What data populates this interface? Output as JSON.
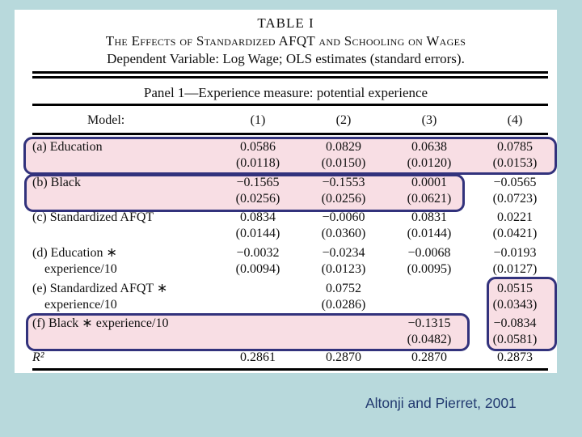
{
  "slide": {
    "background_color": "#b8d9dc",
    "caption": "Altonji and Pierret, 2001",
    "caption_color": "#223a70"
  },
  "table": {
    "title": "TABLE I",
    "subtitle": "The Effects of Standardized AFQT and Schooling on Wages",
    "dependent_line": "Dependent Variable: Log Wage; OLS estimates (standard errors).",
    "panel_header": "Panel 1—Experience measure: potential experience",
    "model_label": "Model:",
    "columns": [
      "(1)",
      "(2)",
      "(3)",
      "(4)"
    ],
    "rows": [
      {
        "label": "(a) Education",
        "label2": "",
        "cells": [
          [
            "0.0586",
            "(0.0118)"
          ],
          [
            "0.0829",
            "(0.0150)"
          ],
          [
            "0.0638",
            "(0.0120)"
          ],
          [
            "0.0785",
            "(0.0153)"
          ]
        ]
      },
      {
        "label": "(b) Black",
        "label2": "",
        "cells": [
          [
            "−0.1565",
            "(0.0256)"
          ],
          [
            "−0.1553",
            "(0.0256)"
          ],
          [
            "0.0001",
            "(0.0621)"
          ],
          [
            "−0.0565",
            "(0.0723)"
          ]
        ]
      },
      {
        "label": "(c) Standardized AFQT",
        "label2": "",
        "cells": [
          [
            "0.0834",
            "(0.0144)"
          ],
          [
            "−0.0060",
            "(0.0360)"
          ],
          [
            "0.0831",
            "(0.0144)"
          ],
          [
            "0.0221",
            "(0.0421)"
          ]
        ]
      },
      {
        "label": "(d) Education ∗",
        "label2": "experience/10",
        "cells": [
          [
            "−0.0032",
            "(0.0094)"
          ],
          [
            "−0.0234",
            "(0.0123)"
          ],
          [
            "−0.0068",
            "(0.0095)"
          ],
          [
            "−0.0193",
            "(0.0127)"
          ]
        ]
      },
      {
        "label": "(e) Standardized AFQT ∗",
        "label2": "experience/10",
        "cells": [
          [
            "",
            ""
          ],
          [
            "0.0752",
            "(0.0286)"
          ],
          [
            "",
            ""
          ],
          [
            "0.0515",
            "(0.0343)"
          ]
        ]
      },
      {
        "label": "(f) Black ∗ experience/10",
        "label2": "",
        "cells": [
          [
            "",
            ""
          ],
          [
            "",
            ""
          ],
          [
            "−0.1315",
            "(0.0482)"
          ],
          [
            "−0.0834",
            "(0.0581)"
          ]
        ]
      },
      {
        "label": "R²",
        "label2": "",
        "cells": [
          [
            "0.2861",
            ""
          ],
          [
            "0.2870",
            ""
          ],
          [
            "0.2870",
            ""
          ],
          [
            "0.2873",
            ""
          ]
        ]
      }
    ],
    "highlight": {
      "fill_color": "#f8dee4",
      "border_color": "#32327c"
    }
  }
}
